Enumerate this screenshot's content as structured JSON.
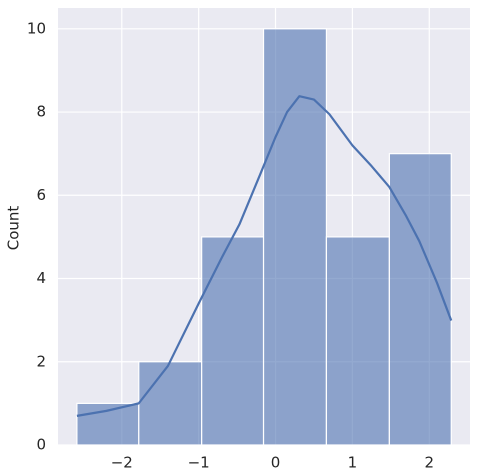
{
  "chart_data": {
    "type": "histogram",
    "y_label": "Count",
    "bins": [
      -2.584,
      -1.779,
      -0.961,
      -0.156,
      0.662,
      1.481,
      2.286
    ],
    "values": [
      1,
      2,
      5,
      10,
      5,
      7
    ],
    "color": "#4c72b0",
    "kde": {
      "x": [
        -2.584,
        -2.2,
        -1.78,
        -1.4,
        -1.0,
        -0.7,
        -0.47,
        -0.2,
        0.0,
        0.15,
        0.31,
        0.5,
        0.7,
        1.0,
        1.25,
        1.48,
        1.7,
        1.87,
        2.1,
        2.286
      ],
      "values": [
        0.7,
        0.82,
        1.0,
        1.9,
        3.4,
        4.5,
        5.3,
        6.5,
        7.4,
        8.0,
        8.38,
        8.3,
        7.95,
        7.2,
        6.7,
        6.2,
        5.5,
        4.9,
        3.9,
        2.99
      ],
      "color": "#4c72b0"
    },
    "xlim": [
      -2.83,
      2.53
    ],
    "ylim": [
      0,
      10.5
    ],
    "xticks": [
      {
        "value": -2,
        "label": "−2"
      },
      {
        "value": -1,
        "label": "−1"
      },
      0,
      1,
      2
    ],
    "yticks": [
      0,
      2,
      4,
      6,
      8,
      10
    ],
    "grid": true
  }
}
